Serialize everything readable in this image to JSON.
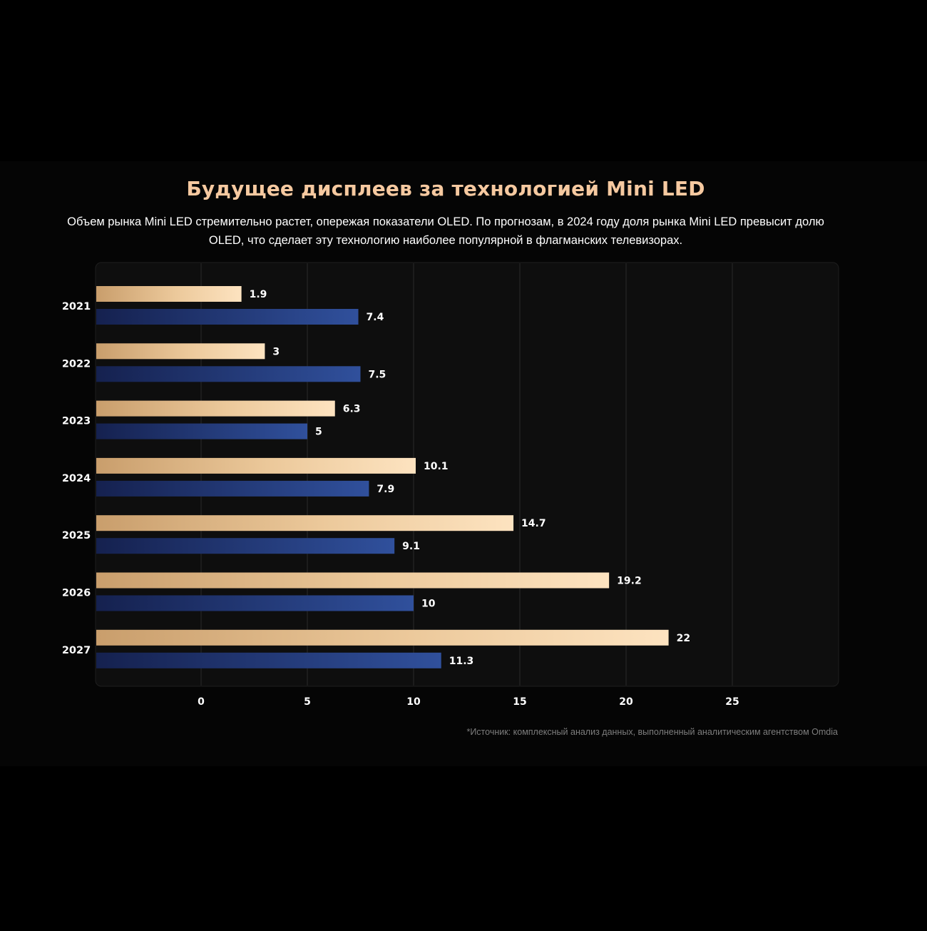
{
  "header": {
    "title": "Будущее дисплеев за технологией Mini LED",
    "subtitle": "Объем рынка Mini LED стремительно растет, опережая показатели OLED. По прогнозам, в 2024 году доля рынка Mini LED превысит долю OLED, что сделает эту технологию наиболее популярной в флагманских телевизорах."
  },
  "footer": {
    "source": "*Источник: комплексный анализ данных, выполненный аналитическим агентством Omdia"
  },
  "colors": {
    "gold_light": "#fde3c0",
    "gold_dark": "#c99e6c",
    "blue_light": "#30509c",
    "blue_dark": "#15214f",
    "grid": "#2a2a2a",
    "plot_bg": "#0e0e0e",
    "label": "#ffffff"
  },
  "chart_data": {
    "type": "bar",
    "orientation": "horizontal",
    "title": "Будущее дисплеев за технологией Mini LED",
    "categories": [
      "2021",
      "2022",
      "2023",
      "2024",
      "2025",
      "2026",
      "2027"
    ],
    "series": [
      {
        "name": "Mini LED",
        "color": "gold",
        "values": [
          1.9,
          3,
          6.3,
          10.1,
          14.7,
          19.2,
          22
        ]
      },
      {
        "name": "OLED",
        "color": "blue",
        "values": [
          7.4,
          7.5,
          5,
          7.9,
          9.1,
          10,
          11.3
        ]
      }
    ],
    "bar_axis_range": [
      -5,
      30
    ],
    "x_ticks": [
      0,
      5,
      10,
      15,
      20,
      25
    ],
    "x_tick_labels": [
      "0",
      "5",
      "10",
      "15",
      "20",
      "25"
    ],
    "value_labels": {
      "Mini LED": [
        "1.9",
        "3",
        "6.3",
        "10.1",
        "14.7",
        "19.2",
        "22"
      ],
      "OLED": [
        "7.4",
        "7.5",
        "5",
        "7.9",
        "9.1",
        "10",
        "11.3"
      ]
    },
    "grid": true,
    "legend": "none"
  }
}
